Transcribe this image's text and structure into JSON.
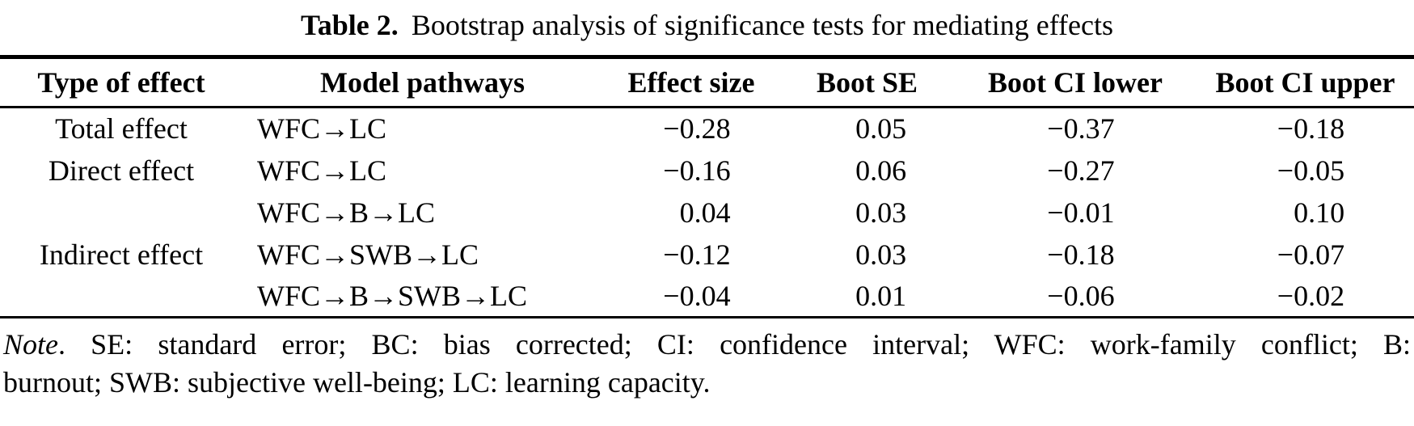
{
  "caption": {
    "label": "Table 2.",
    "text": "Bootstrap analysis of significance tests for mediating effects"
  },
  "table": {
    "columns": [
      "Type of effect",
      "Model pathways",
      "Effect size",
      "Boot SE",
      "Boot CI lower",
      "Boot CI upper"
    ],
    "rows": [
      {
        "type": "Total effect",
        "pathway": "WFC→LC",
        "effect_size": "−0.28",
        "boot_se": "0.05",
        "ci_lower": "−0.37",
        "ci_upper": "−0.18"
      },
      {
        "type": "Direct effect",
        "pathway": "WFC→LC",
        "effect_size": "−0.16",
        "boot_se": "0.06",
        "ci_lower": "−0.27",
        "ci_upper": "−0.05"
      },
      {
        "type": "",
        "pathway": "WFC→B→LC",
        "effect_size": "0.04",
        "boot_se": "0.03",
        "ci_lower": "−0.01",
        "ci_upper": "0.10"
      },
      {
        "type": "Indirect effect",
        "pathway": "WFC→SWB→LC",
        "effect_size": "−0.12",
        "boot_se": "0.03",
        "ci_lower": "−0.18",
        "ci_upper": "−0.07"
      },
      {
        "type": "",
        "pathway": "WFC→B→SWB→LC",
        "effect_size": "−0.04",
        "boot_se": "0.01",
        "ci_lower": "−0.06",
        "ci_upper": "−0.02"
      }
    ]
  },
  "note": {
    "label": "Note",
    "line1": ". SE: standard error; BC: bias corrected; CI: confidence interval; WFC: work-family conflict; B:",
    "line2": "burnout; SWB: subjective well-being; LC: learning capacity."
  }
}
